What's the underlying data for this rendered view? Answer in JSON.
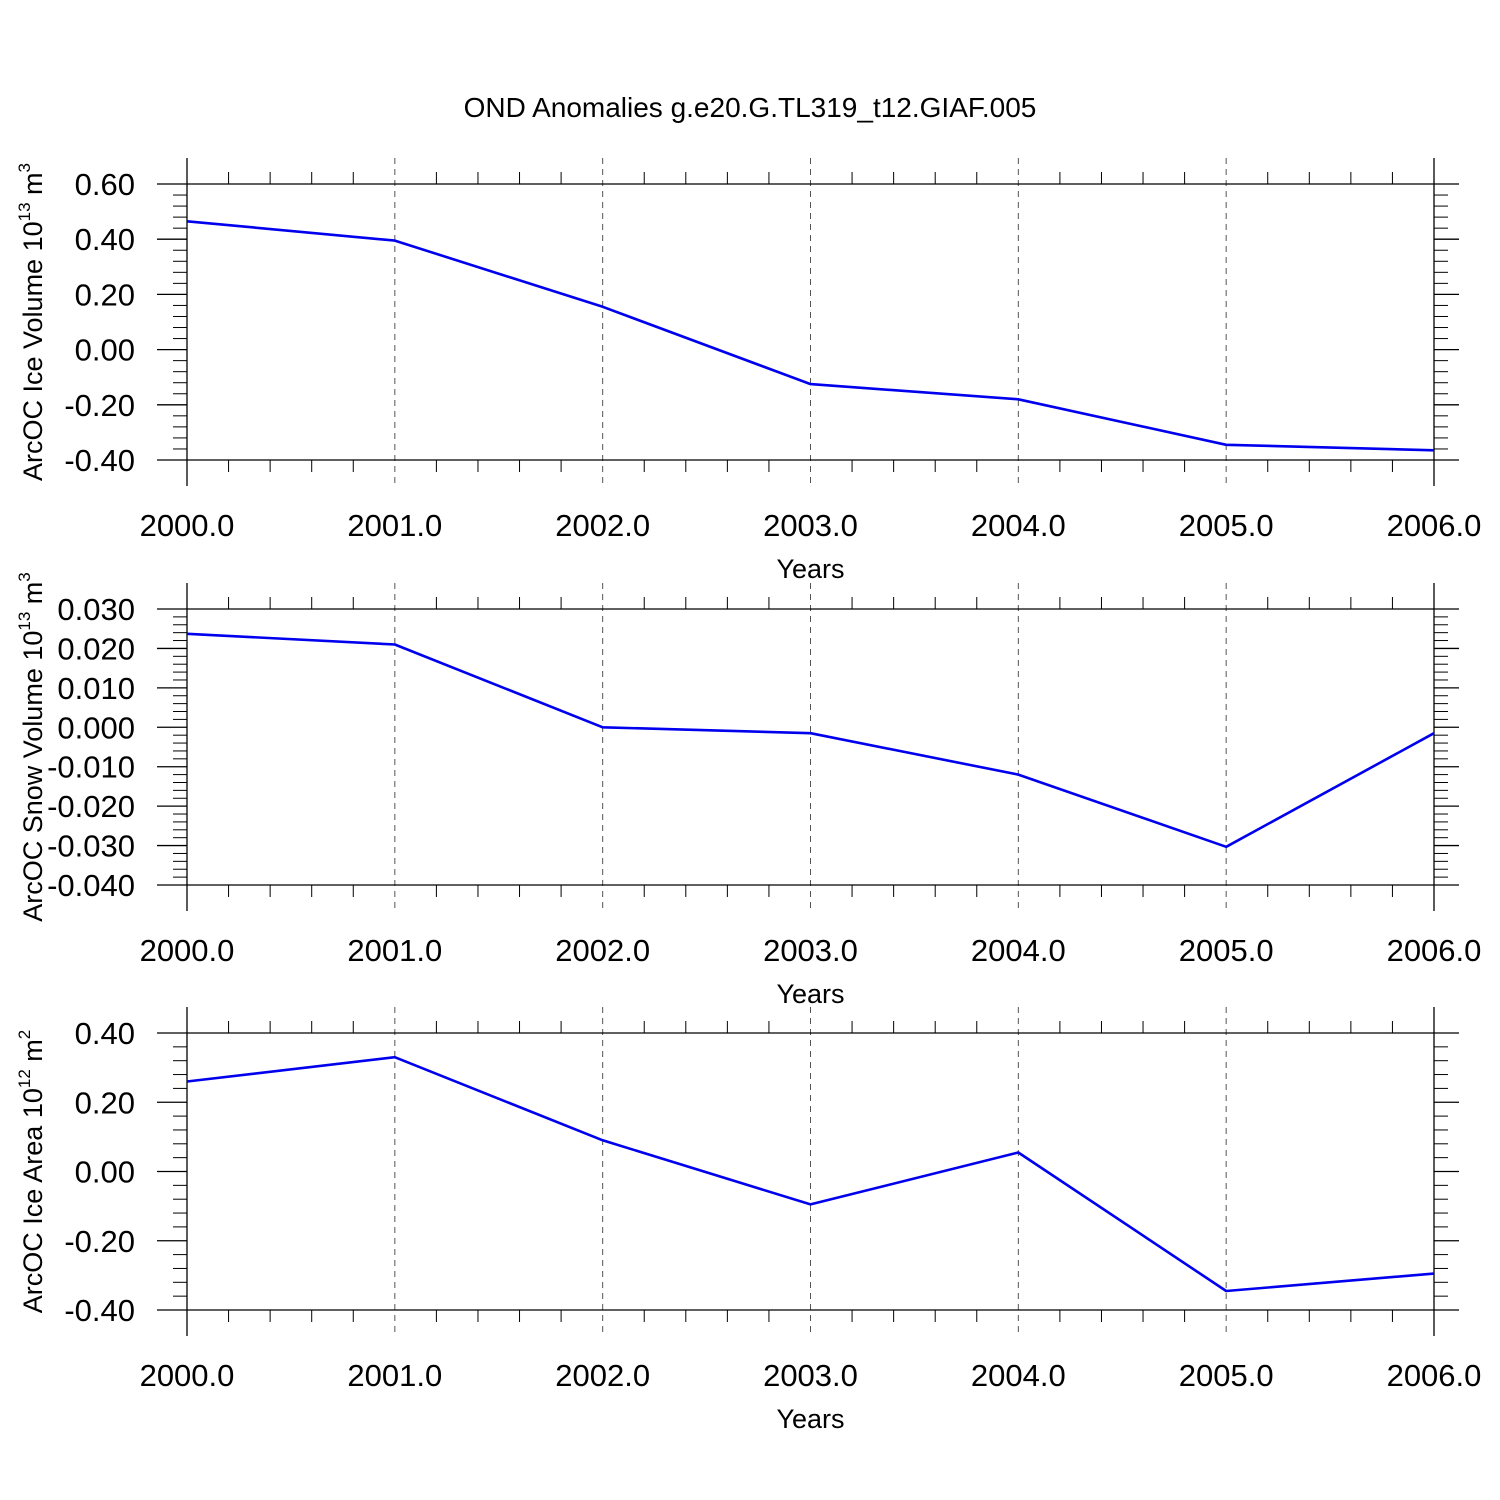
{
  "figure": {
    "title": "OND Anomalies g.e20.G.TL319_t12.GIAF.005"
  },
  "colors": {
    "line": "#0000ee",
    "axes": "#000000",
    "grid": "#555555"
  },
  "chart_data": [
    {
      "type": "line",
      "name": "ice-volume",
      "xlabel": "Years",
      "ylabel_main": "ArcOC Ice Volume 10",
      "ylabel_exp": "13",
      "ylabel_unit": " m",
      "ylabel_unit_exp": "3",
      "xlim": [
        2000,
        2006
      ],
      "ylim": [
        -0.4,
        0.6
      ],
      "xticks": [
        2000,
        2001,
        2002,
        2003,
        2004,
        2005,
        2006
      ],
      "xtick_labels": [
        "2000.0",
        "2001.0",
        "2002.0",
        "2003.0",
        "2004.0",
        "2005.0",
        "2006.0"
      ],
      "yticks": [
        -0.4,
        -0.2,
        0.0,
        0.2,
        0.4,
        0.6
      ],
      "ytick_labels": [
        "-0.40",
        "-0.20",
        "0.00",
        "0.20",
        "0.40",
        "0.60"
      ],
      "x": [
        2000,
        2001,
        2002,
        2003,
        2004,
        2005,
        2006
      ],
      "y": [
        0.465,
        0.395,
        0.155,
        -0.125,
        -0.18,
        -0.345,
        -0.365
      ],
      "grid": "vertical-dashed"
    },
    {
      "type": "line",
      "name": "snow-volume",
      "xlabel": "Years",
      "ylabel_main": "ArcOC Snow Volume 10",
      "ylabel_exp": "13",
      "ylabel_unit": " m",
      "ylabel_unit_exp": "3",
      "xlim": [
        2000,
        2006
      ],
      "ylim": [
        -0.04,
        0.03
      ],
      "xticks": [
        2000,
        2001,
        2002,
        2003,
        2004,
        2005,
        2006
      ],
      "xtick_labels": [
        "2000.0",
        "2001.0",
        "2002.0",
        "2003.0",
        "2004.0",
        "2005.0",
        "2006.0"
      ],
      "yticks": [
        -0.04,
        -0.03,
        -0.02,
        -0.01,
        0.0,
        0.01,
        0.02,
        0.03
      ],
      "ytick_labels": [
        "-0.040",
        "-0.030",
        "-0.020",
        "-0.010",
        "0.000",
        "0.010",
        "0.020",
        "0.030"
      ],
      "x": [
        2000,
        2001,
        2002,
        2003,
        2004,
        2005,
        2006
      ],
      "y": [
        0.0237,
        0.021,
        0.0,
        -0.0015,
        -0.012,
        -0.0303,
        -0.0015
      ],
      "grid": "vertical-dashed"
    },
    {
      "type": "line",
      "name": "ice-area",
      "xlabel": "Years",
      "ylabel_main": "ArcOC Ice Area 10",
      "ylabel_exp": "12",
      "ylabel_unit": " m",
      "ylabel_unit_exp": "2",
      "xlim": [
        2000,
        2006
      ],
      "ylim": [
        -0.4,
        0.4
      ],
      "xticks": [
        2000,
        2001,
        2002,
        2003,
        2004,
        2005,
        2006
      ],
      "xtick_labels": [
        "2000.0",
        "2001.0",
        "2002.0",
        "2003.0",
        "2004.0",
        "2005.0",
        "2006.0"
      ],
      "yticks": [
        -0.4,
        -0.2,
        0.0,
        0.2,
        0.4
      ],
      "ytick_labels": [
        "-0.40",
        "-0.20",
        "0.00",
        "0.20",
        "0.40"
      ],
      "x": [
        2000,
        2001,
        2002,
        2003,
        2004,
        2005,
        2006
      ],
      "y": [
        0.26,
        0.33,
        0.09,
        -0.095,
        0.055,
        -0.345,
        -0.295
      ],
      "grid": "vertical-dashed"
    }
  ]
}
